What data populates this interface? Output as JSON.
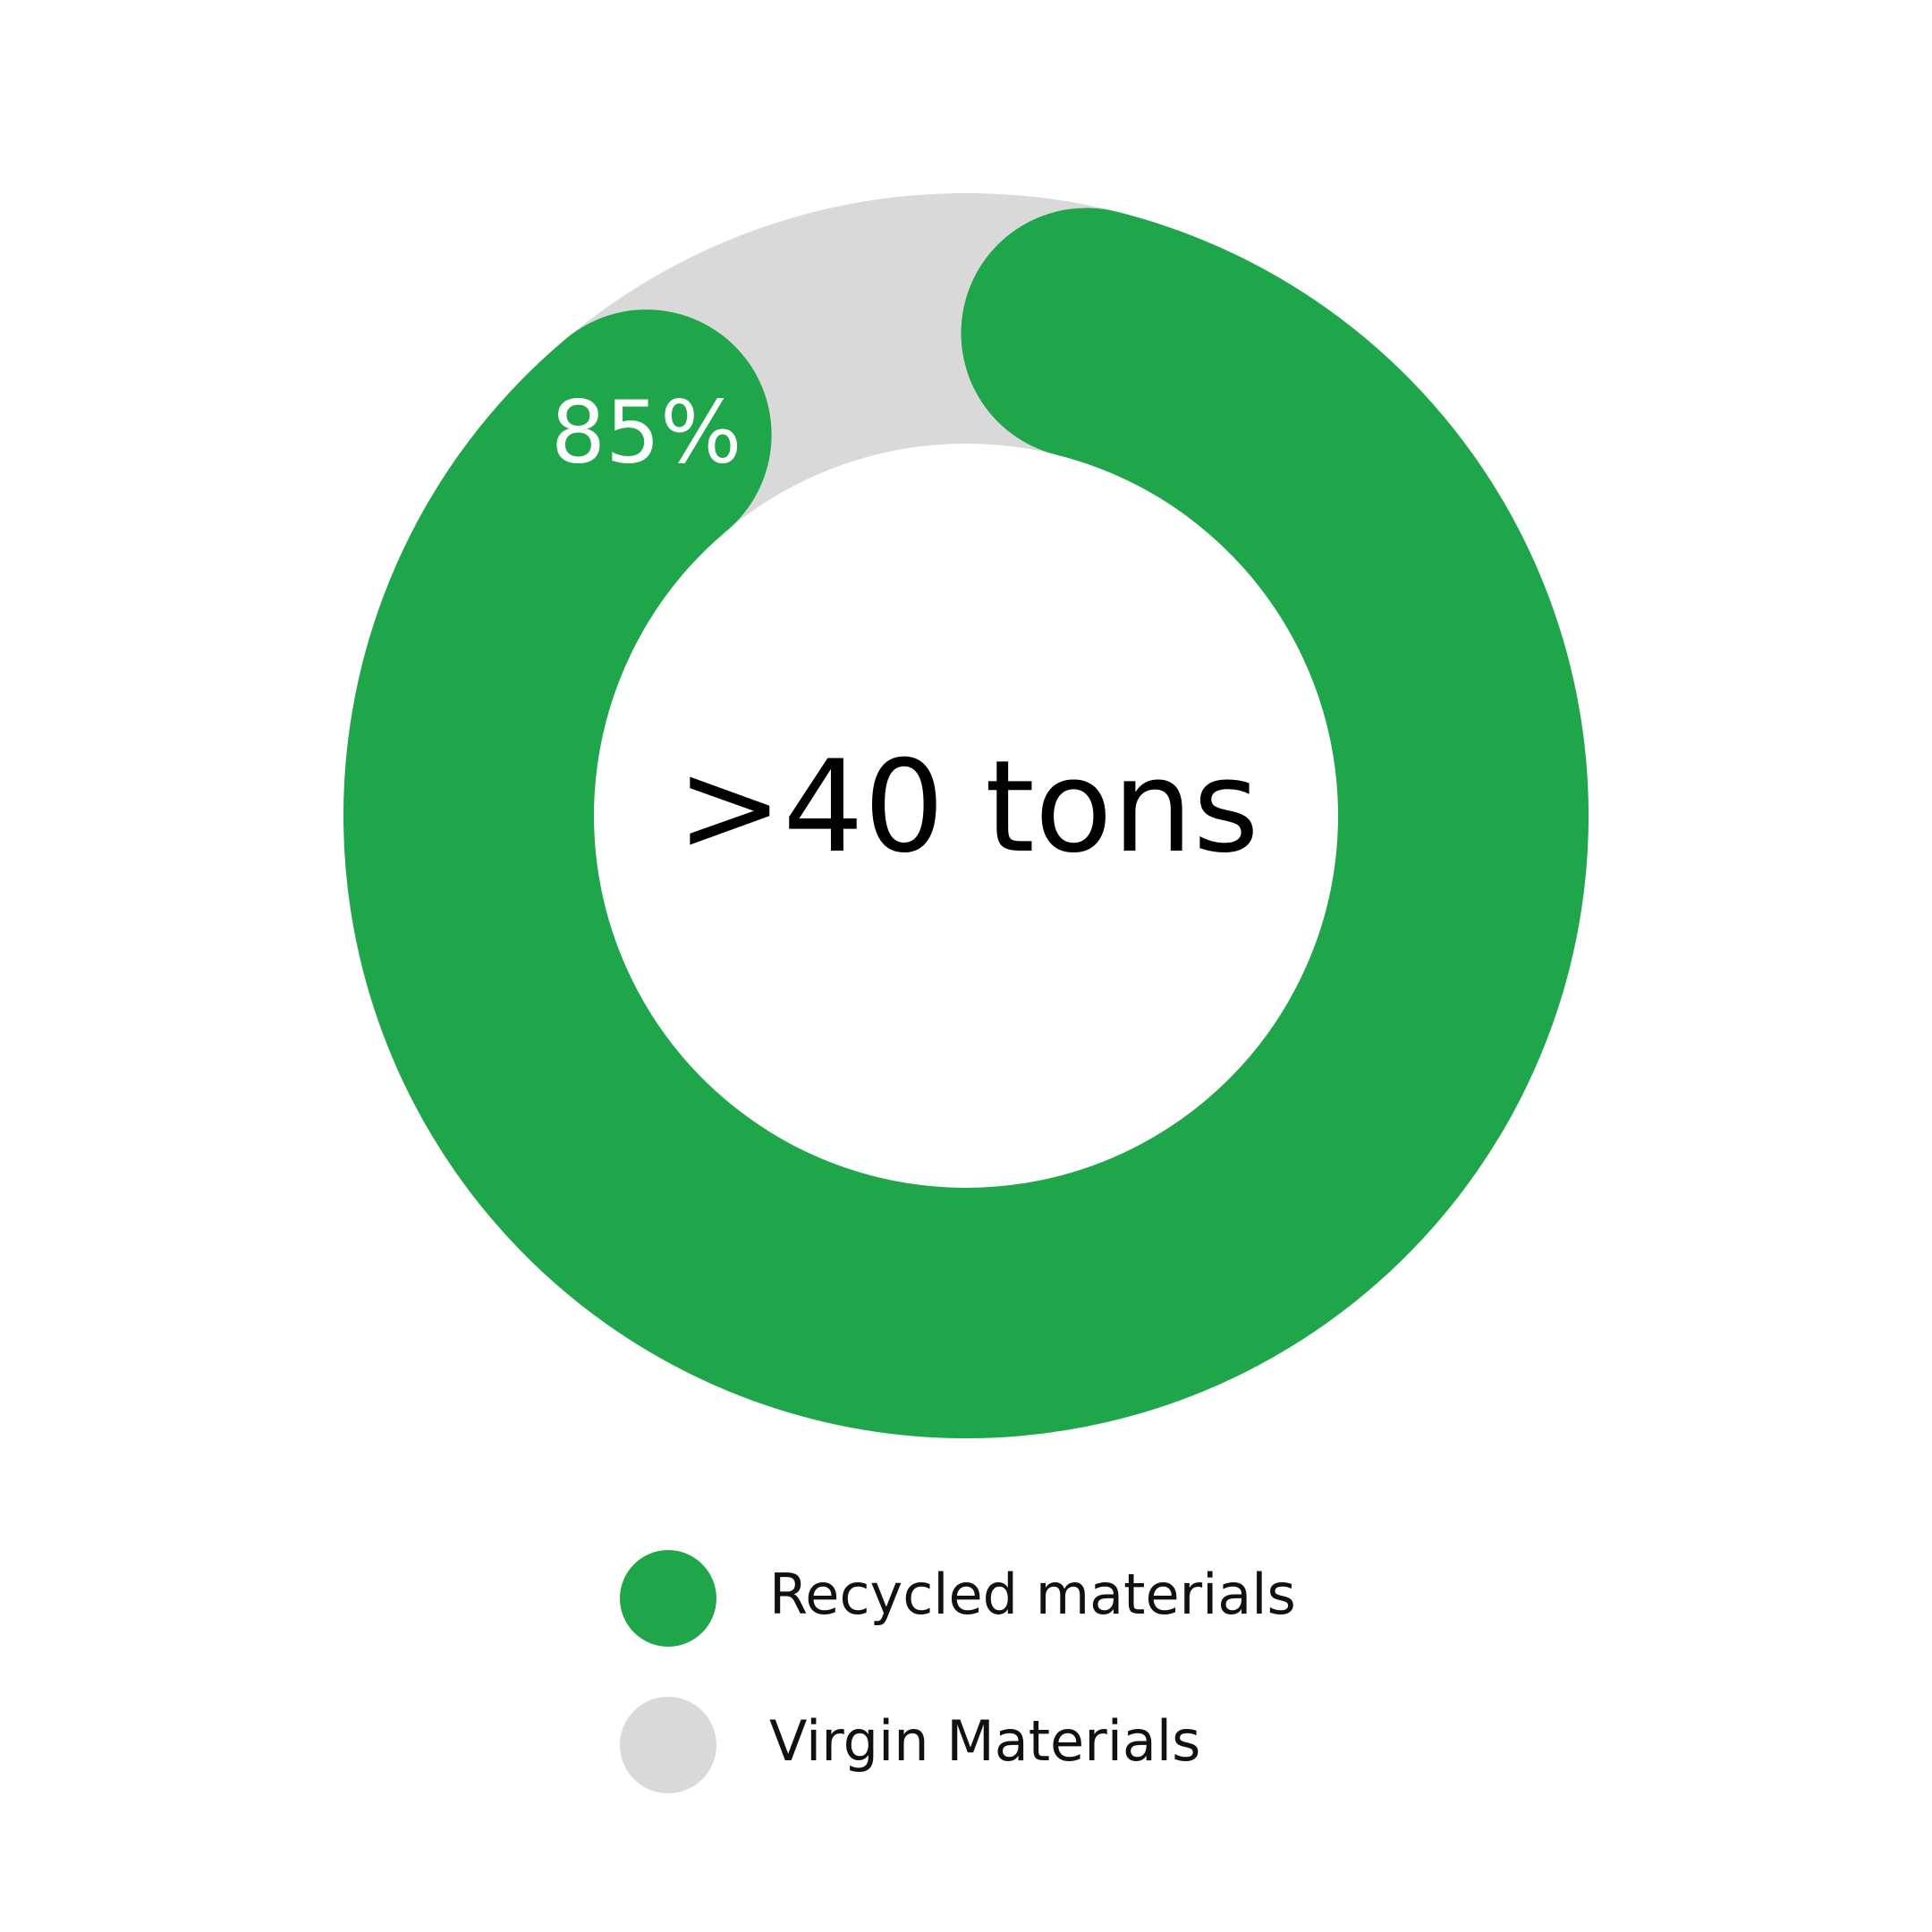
{
  "chart_data": {
    "type": "pie",
    "variant": "donut",
    "center_label": ">40 tons",
    "series": [
      {
        "name": "Recycled materials",
        "value": 85,
        "label": "85%",
        "color": "#1fa64a"
      },
      {
        "name": "Virgin Materials",
        "value": 15,
        "label": "",
        "color": "#d9d9d9"
      }
    ],
    "legend": {
      "placement": "bottom"
    }
  }
}
